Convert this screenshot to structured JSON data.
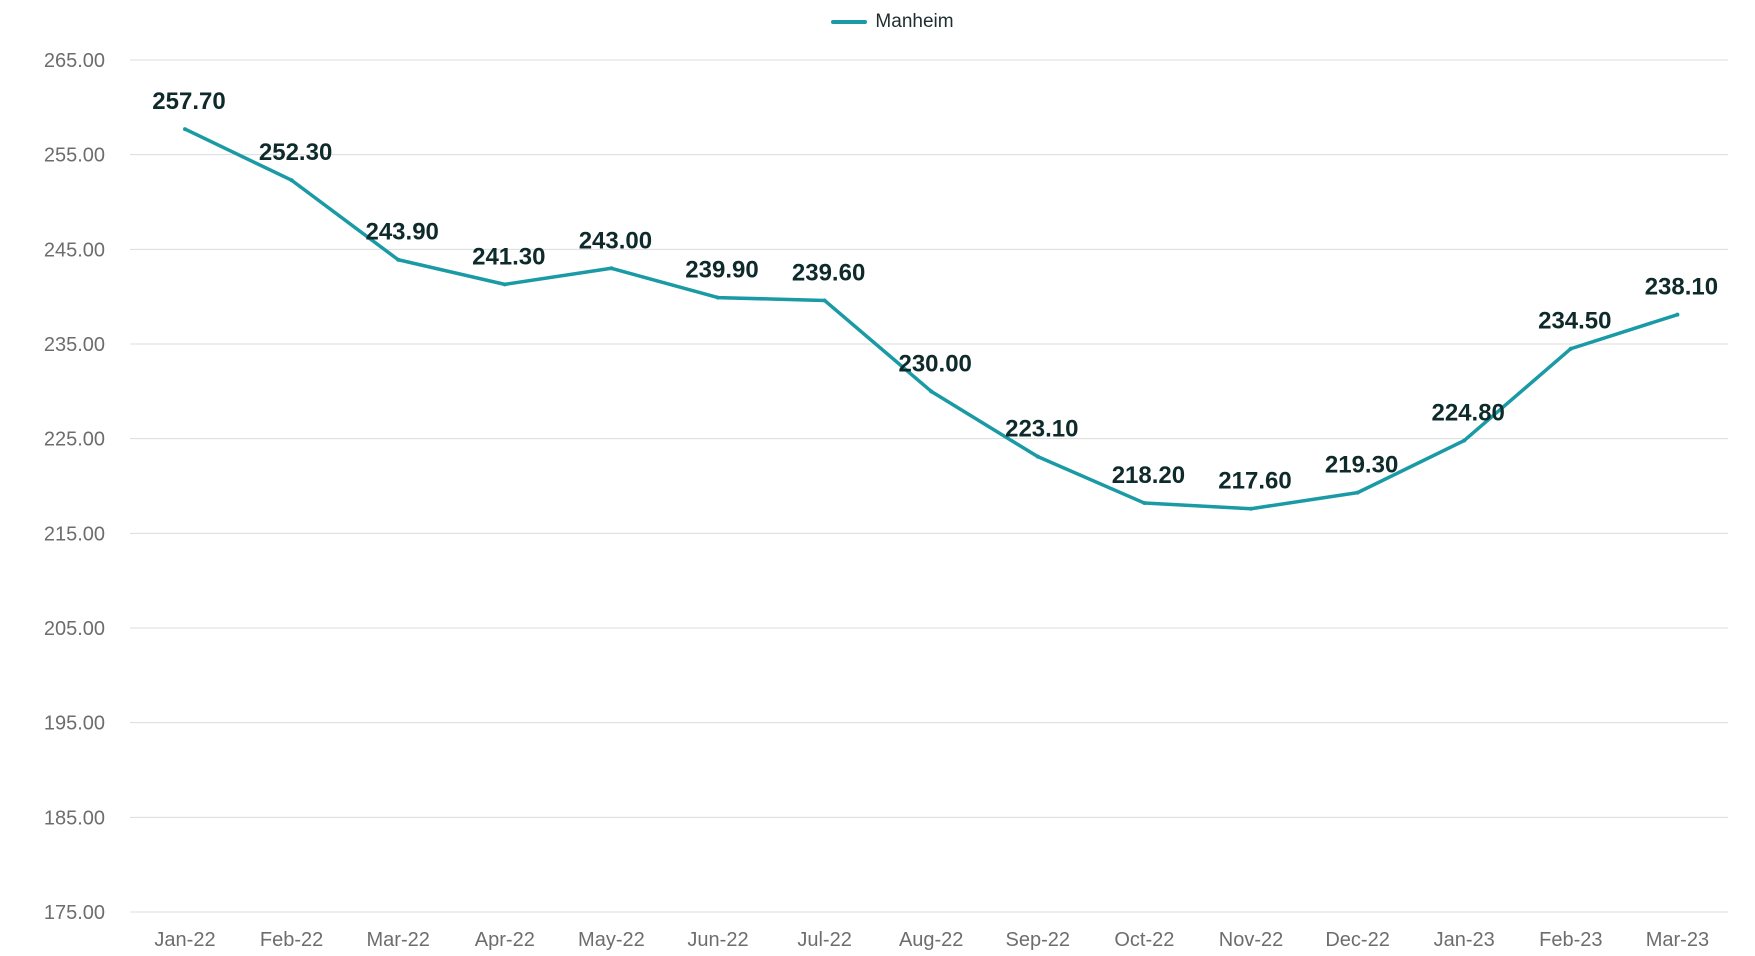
{
  "colors": {
    "series": "#1a9aa5",
    "grid": "#dcdcdc",
    "tick_text": "#6d6d6d",
    "label_text": "#0f2a2b"
  },
  "chart_data": {
    "type": "line",
    "title": "",
    "xlabel": "",
    "ylabel": "",
    "ylim": [
      175,
      265
    ],
    "yticks": [
      "265.00",
      "255.00",
      "245.00",
      "235.00",
      "225.00",
      "215.00",
      "205.00",
      "195.00",
      "185.00",
      "175.00"
    ],
    "ytick_values": [
      265,
      255,
      245,
      235,
      225,
      215,
      205,
      195,
      185,
      175
    ],
    "categories": [
      "Jan-22",
      "Feb-22",
      "Mar-22",
      "Apr-22",
      "May-22",
      "Jun-22",
      "Jul-22",
      "Aug-22",
      "Sep-22",
      "Oct-22",
      "Nov-22",
      "Dec-22",
      "Jan-23",
      "Feb-23",
      "Mar-23"
    ],
    "series": [
      {
        "name": "Manheim",
        "values": [
          257.7,
          252.3,
          243.9,
          241.3,
          243.0,
          239.9,
          239.6,
          230.0,
          223.1,
          218.2,
          217.6,
          219.3,
          224.8,
          234.5,
          238.1
        ],
        "labels": [
          "257.70",
          "252.30",
          "243.90",
          "241.30",
          "243.00",
          "239.90",
          "239.60",
          "230.00",
          "223.10",
          "218.20",
          "217.60",
          "219.30",
          "224.80",
          "234.50",
          "238.10"
        ]
      }
    ],
    "grid": true,
    "legend_position": "top-center"
  }
}
